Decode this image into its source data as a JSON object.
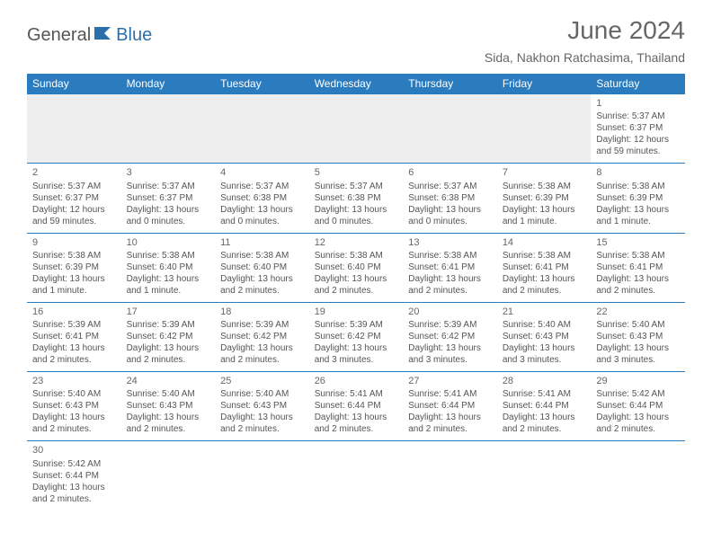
{
  "brand": {
    "part1": "General",
    "part2": "Blue"
  },
  "title": "June 2024",
  "location": "Sida, Nakhon Ratchasima, Thailand",
  "colors": {
    "header_bg": "#2b7bbf",
    "header_text": "#ffffff",
    "body_text": "#555555",
    "title_text": "#666666",
    "logo_blue": "#2b6fab"
  },
  "fonts": {
    "title_size": 28,
    "location_size": 14,
    "dayhead_size": 12,
    "cell_size": 10
  },
  "day_headers": [
    "Sunday",
    "Monday",
    "Tuesday",
    "Wednesday",
    "Thursday",
    "Friday",
    "Saturday"
  ],
  "weeks": [
    [
      null,
      null,
      null,
      null,
      null,
      null,
      {
        "n": "1",
        "sunrise": "Sunrise: 5:37 AM",
        "sunset": "Sunset: 6:37 PM",
        "daylight": "Daylight: 12 hours and 59 minutes."
      }
    ],
    [
      {
        "n": "2",
        "sunrise": "Sunrise: 5:37 AM",
        "sunset": "Sunset: 6:37 PM",
        "daylight": "Daylight: 12 hours and 59 minutes."
      },
      {
        "n": "3",
        "sunrise": "Sunrise: 5:37 AM",
        "sunset": "Sunset: 6:37 PM",
        "daylight": "Daylight: 13 hours and 0 minutes."
      },
      {
        "n": "4",
        "sunrise": "Sunrise: 5:37 AM",
        "sunset": "Sunset: 6:38 PM",
        "daylight": "Daylight: 13 hours and 0 minutes."
      },
      {
        "n": "5",
        "sunrise": "Sunrise: 5:37 AM",
        "sunset": "Sunset: 6:38 PM",
        "daylight": "Daylight: 13 hours and 0 minutes."
      },
      {
        "n": "6",
        "sunrise": "Sunrise: 5:37 AM",
        "sunset": "Sunset: 6:38 PM",
        "daylight": "Daylight: 13 hours and 0 minutes."
      },
      {
        "n": "7",
        "sunrise": "Sunrise: 5:38 AM",
        "sunset": "Sunset: 6:39 PM",
        "daylight": "Daylight: 13 hours and 1 minute."
      },
      {
        "n": "8",
        "sunrise": "Sunrise: 5:38 AM",
        "sunset": "Sunset: 6:39 PM",
        "daylight": "Daylight: 13 hours and 1 minute."
      }
    ],
    [
      {
        "n": "9",
        "sunrise": "Sunrise: 5:38 AM",
        "sunset": "Sunset: 6:39 PM",
        "daylight": "Daylight: 13 hours and 1 minute."
      },
      {
        "n": "10",
        "sunrise": "Sunrise: 5:38 AM",
        "sunset": "Sunset: 6:40 PM",
        "daylight": "Daylight: 13 hours and 1 minute."
      },
      {
        "n": "11",
        "sunrise": "Sunrise: 5:38 AM",
        "sunset": "Sunset: 6:40 PM",
        "daylight": "Daylight: 13 hours and 2 minutes."
      },
      {
        "n": "12",
        "sunrise": "Sunrise: 5:38 AM",
        "sunset": "Sunset: 6:40 PM",
        "daylight": "Daylight: 13 hours and 2 minutes."
      },
      {
        "n": "13",
        "sunrise": "Sunrise: 5:38 AM",
        "sunset": "Sunset: 6:41 PM",
        "daylight": "Daylight: 13 hours and 2 minutes."
      },
      {
        "n": "14",
        "sunrise": "Sunrise: 5:38 AM",
        "sunset": "Sunset: 6:41 PM",
        "daylight": "Daylight: 13 hours and 2 minutes."
      },
      {
        "n": "15",
        "sunrise": "Sunrise: 5:38 AM",
        "sunset": "Sunset: 6:41 PM",
        "daylight": "Daylight: 13 hours and 2 minutes."
      }
    ],
    [
      {
        "n": "16",
        "sunrise": "Sunrise: 5:39 AM",
        "sunset": "Sunset: 6:41 PM",
        "daylight": "Daylight: 13 hours and 2 minutes."
      },
      {
        "n": "17",
        "sunrise": "Sunrise: 5:39 AM",
        "sunset": "Sunset: 6:42 PM",
        "daylight": "Daylight: 13 hours and 2 minutes."
      },
      {
        "n": "18",
        "sunrise": "Sunrise: 5:39 AM",
        "sunset": "Sunset: 6:42 PM",
        "daylight": "Daylight: 13 hours and 2 minutes."
      },
      {
        "n": "19",
        "sunrise": "Sunrise: 5:39 AM",
        "sunset": "Sunset: 6:42 PM",
        "daylight": "Daylight: 13 hours and 3 minutes."
      },
      {
        "n": "20",
        "sunrise": "Sunrise: 5:39 AM",
        "sunset": "Sunset: 6:42 PM",
        "daylight": "Daylight: 13 hours and 3 minutes."
      },
      {
        "n": "21",
        "sunrise": "Sunrise: 5:40 AM",
        "sunset": "Sunset: 6:43 PM",
        "daylight": "Daylight: 13 hours and 3 minutes."
      },
      {
        "n": "22",
        "sunrise": "Sunrise: 5:40 AM",
        "sunset": "Sunset: 6:43 PM",
        "daylight": "Daylight: 13 hours and 3 minutes."
      }
    ],
    [
      {
        "n": "23",
        "sunrise": "Sunrise: 5:40 AM",
        "sunset": "Sunset: 6:43 PM",
        "daylight": "Daylight: 13 hours and 2 minutes."
      },
      {
        "n": "24",
        "sunrise": "Sunrise: 5:40 AM",
        "sunset": "Sunset: 6:43 PM",
        "daylight": "Daylight: 13 hours and 2 minutes."
      },
      {
        "n": "25",
        "sunrise": "Sunrise: 5:40 AM",
        "sunset": "Sunset: 6:43 PM",
        "daylight": "Daylight: 13 hours and 2 minutes."
      },
      {
        "n": "26",
        "sunrise": "Sunrise: 5:41 AM",
        "sunset": "Sunset: 6:44 PM",
        "daylight": "Daylight: 13 hours and 2 minutes."
      },
      {
        "n": "27",
        "sunrise": "Sunrise: 5:41 AM",
        "sunset": "Sunset: 6:44 PM",
        "daylight": "Daylight: 13 hours and 2 minutes."
      },
      {
        "n": "28",
        "sunrise": "Sunrise: 5:41 AM",
        "sunset": "Sunset: 6:44 PM",
        "daylight": "Daylight: 13 hours and 2 minutes."
      },
      {
        "n": "29",
        "sunrise": "Sunrise: 5:42 AM",
        "sunset": "Sunset: 6:44 PM",
        "daylight": "Daylight: 13 hours and 2 minutes."
      }
    ],
    [
      {
        "n": "30",
        "sunrise": "Sunrise: 5:42 AM",
        "sunset": "Sunset: 6:44 PM",
        "daylight": "Daylight: 13 hours and 2 minutes."
      },
      null,
      null,
      null,
      null,
      null,
      null
    ]
  ]
}
